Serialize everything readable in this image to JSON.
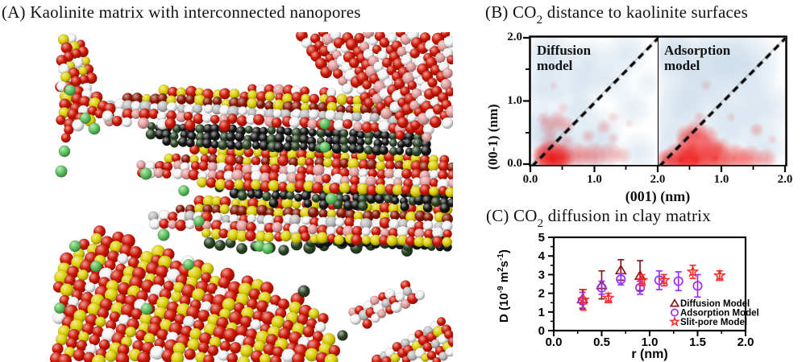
{
  "page": {
    "background": "#ffffff"
  },
  "panel_a": {
    "title": "(A) Kaolinite matrix with interconnected nanopores",
    "atom_colors": {
      "oxygen": "#cf1402",
      "silicon": "#ddd000",
      "hydrogen": "#f4f4f4",
      "gray": "#bdbdbd",
      "hydroxyl": "#e49c9c",
      "dark": "#141414",
      "dark_red": "#8a1400",
      "co2_bright": "#5cc25c",
      "co2_dark": "#2a4423"
    }
  },
  "panel_b": {
    "title": {
      "pre": "(B) CO",
      "sub": "2",
      "post": " distance to kaolinite surfaces"
    },
    "ylabel": "(00-1) (nm)",
    "xlabel": "(001) (nm)",
    "y_ticks": [
      "2.0",
      "1.0",
      "0.0"
    ],
    "x_ticks": [
      "0.0",
      "1.0",
      "2.0",
      "1.0",
      "2.0"
    ],
    "panels": [
      {
        "label": "Diffusion model"
      },
      {
        "label": "Adsorption model"
      }
    ]
  },
  "panel_c": {
    "title": {
      "pre": "(C) CO",
      "sub": "2",
      "post": " diffusion in clay matrix"
    },
    "xlabel": "r (nm)",
    "ylabel_parts": [
      {
        "t": "D (10"
      },
      {
        "t": "-9",
        "sup": true
      },
      {
        "t": " m"
      },
      {
        "t": "2",
        "sup": true
      },
      {
        "t": "s"
      },
      {
        "t": "-1",
        "sup": true
      },
      {
        "t": ")"
      }
    ],
    "x_ticks": [
      "0.0",
      "0.5",
      "1.0",
      "1.5",
      "2.0"
    ],
    "y_ticks": [
      "0",
      "1",
      "2",
      "3",
      "4",
      "5"
    ]
  },
  "chart_data": [
    {
      "id": "heatmap-diffusion",
      "type": "heatmap",
      "title": "Diffusion model",
      "xlabel": "(001) (nm)",
      "ylabel": "(00-1) (nm)",
      "x_range": [
        0,
        2
      ],
      "y_range": [
        0,
        2
      ],
      "diagonal_dashed": true,
      "blue_clouds": [
        [
          0.3,
          1.7,
          0.45,
          0.5
        ],
        [
          0.9,
          1.55,
          0.5,
          0.45
        ],
        [
          1.5,
          1.75,
          0.4,
          0.4
        ],
        [
          0.2,
          1.2,
          0.4,
          0.45
        ],
        [
          0.7,
          1.15,
          0.45,
          0.35
        ],
        [
          1.3,
          1.3,
          0.35,
          0.3
        ],
        [
          0.15,
          0.6,
          0.4,
          0.5
        ],
        [
          0.5,
          0.55,
          0.45,
          0.4
        ],
        [
          1.1,
          0.55,
          0.4,
          0.35
        ],
        [
          1.6,
          0.9,
          0.35,
          0.3
        ],
        [
          0.35,
          0.15,
          0.5,
          0.5
        ],
        [
          1.0,
          0.2,
          0.5,
          0.4
        ],
        [
          1.7,
          0.2,
          0.35,
          0.35
        ],
        [
          1.85,
          1.3,
          0.25,
          0.25
        ],
        [
          0.8,
          0.85,
          0.3,
          0.3
        ]
      ],
      "red_blobs": [
        [
          0.33,
          0.1,
          0.3,
          0.95
        ],
        [
          0.5,
          0.12,
          0.22,
          0.75
        ],
        [
          0.2,
          0.15,
          0.2,
          0.6
        ],
        [
          0.75,
          0.15,
          0.22,
          0.45
        ],
        [
          1.0,
          0.15,
          0.22,
          0.4
        ],
        [
          1.25,
          0.18,
          0.2,
          0.3
        ],
        [
          1.45,
          0.15,
          0.15,
          0.22
        ],
        [
          0.3,
          0.35,
          0.18,
          0.3
        ],
        [
          0.55,
          0.35,
          0.15,
          0.25
        ],
        [
          0.3,
          0.6,
          0.18,
          0.3
        ],
        [
          0.55,
          0.62,
          0.16,
          0.28
        ],
        [
          0.42,
          0.72,
          0.15,
          0.25
        ],
        [
          0.2,
          0.72,
          0.12,
          0.22
        ],
        [
          0.9,
          0.45,
          0.12,
          0.22
        ],
        [
          1.15,
          0.6,
          0.13,
          0.22
        ],
        [
          1.3,
          0.42,
          0.1,
          0.18
        ],
        [
          0.5,
          0.9,
          0.1,
          0.15
        ],
        [
          1.3,
          0.75,
          0.1,
          0.15
        ],
        [
          0.35,
          1.25,
          0.07,
          0.15
        ],
        [
          1.55,
          0.65,
          0.08,
          0.12
        ]
      ]
    },
    {
      "id": "heatmap-adsorption",
      "type": "heatmap",
      "title": "Adsorption model",
      "xlabel": "(001) (nm)",
      "ylabel": "(00-1) (nm)",
      "x_range": [
        0,
        2
      ],
      "y_range": [
        0,
        2
      ],
      "diagonal_dashed": true,
      "blue_clouds": [
        [
          0.5,
          1.5,
          0.7,
          0.5
        ],
        [
          1.4,
          1.6,
          0.6,
          0.5
        ],
        [
          1.0,
          1.0,
          0.8,
          0.4
        ],
        [
          0.3,
          0.8,
          0.5,
          0.45
        ],
        [
          1.7,
          0.9,
          0.5,
          0.4
        ],
        [
          1.7,
          0.3,
          0.4,
          0.4
        ],
        [
          0.2,
          1.8,
          0.4,
          0.4
        ],
        [
          1.0,
          1.8,
          0.5,
          0.35
        ],
        [
          0.15,
          0.3,
          0.4,
          0.4
        ],
        [
          1.2,
          0.5,
          0.5,
          0.3
        ]
      ],
      "red_blobs": [
        [
          0.35,
          0.08,
          0.3,
          0.9
        ],
        [
          0.6,
          0.08,
          0.28,
          0.85
        ],
        [
          0.9,
          0.1,
          0.28,
          0.8
        ],
        [
          1.2,
          0.1,
          0.25,
          0.6
        ],
        [
          1.45,
          0.1,
          0.22,
          0.5
        ],
        [
          1.7,
          0.1,
          0.18,
          0.35
        ],
        [
          0.12,
          0.08,
          0.18,
          0.6
        ],
        [
          0.55,
          0.3,
          0.3,
          0.65
        ],
        [
          0.75,
          0.42,
          0.22,
          0.5
        ],
        [
          0.6,
          0.55,
          0.18,
          0.4
        ],
        [
          0.45,
          0.45,
          0.2,
          0.45
        ],
        [
          0.85,
          0.25,
          0.2,
          0.45
        ],
        [
          1.0,
          0.3,
          0.15,
          0.3
        ],
        [
          0.65,
          0.75,
          0.1,
          0.2
        ],
        [
          1.55,
          0.55,
          0.12,
          0.25
        ],
        [
          0.75,
          1.25,
          0.1,
          0.15
        ],
        [
          1.8,
          0.4,
          0.08,
          0.15
        ],
        [
          1.15,
          0.75,
          0.08,
          0.15
        ]
      ]
    },
    {
      "id": "co2-diffusion-scatter",
      "type": "scatter",
      "title": "(C) CO2 diffusion in clay matrix",
      "xlabel": "r (nm)",
      "ylabel": "D (10^-9 m^2 s^-1)",
      "xlim": [
        0,
        2
      ],
      "ylim": [
        0,
        5
      ],
      "legend_position": "inside bottom-right",
      "series": [
        {
          "name": "Diffusion Model",
          "marker": "triangle",
          "color": "#8b1a1a",
          "points": [
            [
              0.3,
              1.7,
              0.5
            ],
            [
              0.5,
              2.45,
              0.75
            ],
            [
              0.7,
              3.25,
              0.55
            ],
            [
              0.9,
              2.95,
              0.8
            ]
          ]
        },
        {
          "name": "Adsorption Model",
          "marker": "circle",
          "color": "#9b30ff",
          "points": [
            [
              0.3,
              1.6,
              0.45
            ],
            [
              0.5,
              2.3,
              0.35
            ],
            [
              0.7,
              2.75,
              0.3
            ],
            [
              0.9,
              2.3,
              0.35
            ],
            [
              1.1,
              2.7,
              0.5
            ],
            [
              1.3,
              2.65,
              0.5
            ],
            [
              1.5,
              2.4,
              0.6
            ]
          ]
        },
        {
          "name": "Slit-pore Model",
          "marker": "star",
          "color": "#ff2a2a",
          "points": [
            [
              0.31,
              1.65,
              0.55
            ],
            [
              0.57,
              1.75,
              0.25
            ],
            [
              0.92,
              2.7,
              0.3
            ],
            [
              1.15,
              2.7,
              0.3
            ],
            [
              1.45,
              3.15,
              0.35
            ],
            [
              1.73,
              2.95,
              0.25
            ]
          ]
        }
      ]
    }
  ]
}
